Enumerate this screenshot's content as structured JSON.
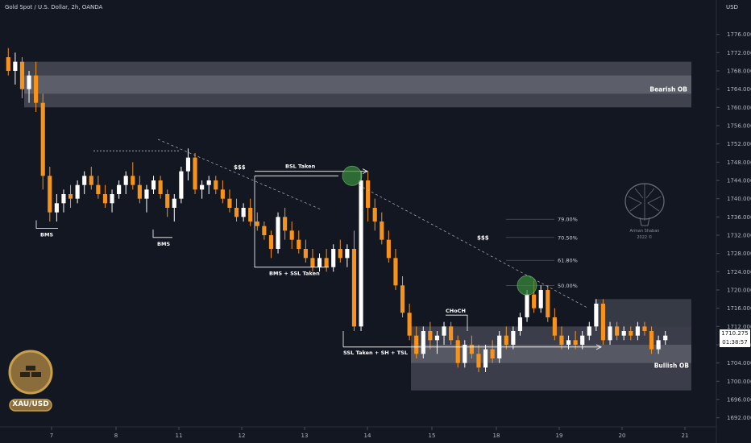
{
  "header": {
    "symbol": "Gold Spot / U.S. Dollar, 2h, OANDA",
    "currency": "USD"
  },
  "price_tag": {
    "value": "1710.275",
    "countdown": "01:38:57"
  },
  "badge": {
    "text": "XAU/USD"
  },
  "watermark": {
    "line1": "Arman Shaban",
    "line2": "2022 ©"
  },
  "colors": {
    "background": "#131722",
    "up": "#ffffff",
    "down": "#f7931a",
    "zone": "#787b86",
    "circle": "#388e3c"
  },
  "chart_data": {
    "type": "candlestick",
    "title": "Gold Spot / U.S. Dollar, 2h, OANDA",
    "ylim": [
      1690,
      1780
    ],
    "y_ticks": [
      "1692.000",
      "1696.000",
      "1700.000",
      "1704.000",
      "1708.000",
      "1712.000",
      "1716.000",
      "1720.000",
      "1724.000",
      "1728.000",
      "1732.000",
      "1736.000",
      "1740.000",
      "1744.000",
      "1748.000",
      "1752.000",
      "1756.000",
      "1760.000",
      "1764.000",
      "1768.000",
      "1772.000",
      "1776.000"
    ],
    "x_ticks": [
      "7",
      "8",
      "11",
      "12",
      "13",
      "14",
      "15",
      "18",
      "19",
      "20",
      "21"
    ],
    "candles": [
      [
        1771,
        1773,
        1767,
        1768
      ],
      [
        1768,
        1772,
        1765,
        1770
      ],
      [
        1770,
        1771,
        1762,
        1764
      ],
      [
        1764,
        1768,
        1761,
        1767
      ],
      [
        1767,
        1770,
        1759,
        1761
      ],
      [
        1761,
        1763,
        1742,
        1745
      ],
      [
        1745,
        1747,
        1735,
        1737
      ],
      [
        1737,
        1741,
        1735,
        1739
      ],
      [
        1739,
        1742,
        1737,
        1741
      ],
      [
        1741,
        1743,
        1738,
        1740
      ],
      [
        1740,
        1744,
        1739,
        1743
      ],
      [
        1743,
        1746,
        1741,
        1745
      ],
      [
        1745,
        1747,
        1742,
        1743
      ],
      [
        1743,
        1745,
        1740,
        1741
      ],
      [
        1741,
        1743,
        1738,
        1739
      ],
      [
        1739,
        1742,
        1737,
        1741
      ],
      [
        1741,
        1744,
        1740,
        1743
      ],
      [
        1743,
        1746,
        1741,
        1745
      ],
      [
        1745,
        1748,
        1742,
        1743
      ],
      [
        1743,
        1745,
        1739,
        1740
      ],
      [
        1740,
        1743,
        1737,
        1742
      ],
      [
        1742,
        1745,
        1741,
        1744
      ],
      [
        1744,
        1745,
        1740,
        1741
      ],
      [
        1741,
        1742,
        1736,
        1738
      ],
      [
        1738,
        1741,
        1735,
        1740
      ],
      [
        1740,
        1747,
        1739,
        1746
      ],
      [
        1746,
        1751,
        1744,
        1749
      ],
      [
        1749,
        1750,
        1741,
        1742
      ],
      [
        1742,
        1744,
        1740,
        1743
      ],
      [
        1743,
        1745,
        1741,
        1744
      ],
      [
        1744,
        1745,
        1741,
        1742
      ],
      [
        1742,
        1744,
        1739,
        1740
      ],
      [
        1740,
        1742,
        1737,
        1738
      ],
      [
        1738,
        1740,
        1735,
        1736
      ],
      [
        1736,
        1739,
        1735,
        1738
      ],
      [
        1738,
        1740,
        1734,
        1735
      ],
      [
        1735,
        1737,
        1733,
        1734
      ],
      [
        1734,
        1735,
        1731,
        1732
      ],
      [
        1732,
        1733,
        1727,
        1729
      ],
      [
        1729,
        1737,
        1728,
        1736
      ],
      [
        1736,
        1738,
        1731,
        1733
      ],
      [
        1733,
        1735,
        1729,
        1731
      ],
      [
        1731,
        1733,
        1728,
        1729
      ],
      [
        1729,
        1731,
        1726,
        1727
      ],
      [
        1727,
        1729,
        1724,
        1725
      ],
      [
        1725,
        1728,
        1724,
        1727
      ],
      [
        1727,
        1729,
        1724,
        1725
      ],
      [
        1725,
        1730,
        1724,
        1729
      ],
      [
        1729,
        1731,
        1726,
        1727
      ],
      [
        1727,
        1730,
        1725,
        1729
      ],
      [
        1729,
        1733,
        1711,
        1712
      ],
      [
        1712,
        1746,
        1711,
        1744
      ],
      [
        1744,
        1746,
        1735,
        1738
      ],
      [
        1738,
        1740,
        1733,
        1735
      ],
      [
        1735,
        1737,
        1730,
        1731
      ],
      [
        1731,
        1733,
        1726,
        1727
      ],
      [
        1727,
        1729,
        1720,
        1721
      ],
      [
        1721,
        1723,
        1714,
        1715
      ],
      [
        1715,
        1717,
        1709,
        1710
      ],
      [
        1710,
        1712,
        1705,
        1706
      ],
      [
        1706,
        1712,
        1705,
        1711
      ],
      [
        1711,
        1713,
        1707,
        1709
      ],
      [
        1709,
        1711,
        1706,
        1710
      ],
      [
        1710,
        1713,
        1708,
        1712
      ],
      [
        1712,
        1713,
        1708,
        1709
      ],
      [
        1709,
        1710,
        1703,
        1704
      ],
      [
        1704,
        1709,
        1703,
        1708
      ],
      [
        1708,
        1710,
        1705,
        1706
      ],
      [
        1706,
        1708,
        1702,
        1703
      ],
      [
        1703,
        1708,
        1702,
        1707
      ],
      [
        1707,
        1709,
        1704,
        1705
      ],
      [
        1705,
        1711,
        1704,
        1710
      ],
      [
        1710,
        1712,
        1707,
        1708
      ],
      [
        1708,
        1712,
        1707,
        1711
      ],
      [
        1711,
        1715,
        1710,
        1714
      ],
      [
        1714,
        1720,
        1713,
        1719
      ],
      [
        1719,
        1722,
        1715,
        1716
      ],
      [
        1716,
        1721,
        1715,
        1720
      ],
      [
        1720,
        1721,
        1713,
        1714
      ],
      [
        1714,
        1716,
        1709,
        1710
      ],
      [
        1710,
        1712,
        1707,
        1708
      ],
      [
        1708,
        1710,
        1707,
        1709
      ],
      [
        1709,
        1711,
        1707,
        1708
      ],
      [
        1708,
        1711,
        1707,
        1710
      ],
      [
        1710,
        1713,
        1709,
        1712
      ],
      [
        1712,
        1718,
        1711,
        1717
      ],
      [
        1717,
        1718,
        1708,
        1709
      ],
      [
        1709,
        1713,
        1708,
        1712
      ],
      [
        1712,
        1713,
        1709,
        1710
      ],
      [
        1710,
        1712,
        1709,
        1711
      ],
      [
        1711,
        1712,
        1709,
        1710
      ],
      [
        1710,
        1713,
        1709,
        1712
      ],
      [
        1712,
        1713,
        1710,
        1711
      ],
      [
        1711,
        1712,
        1706,
        1707
      ],
      [
        1707,
        1710,
        1706,
        1709
      ],
      [
        1709,
        1711,
        1708,
        1710
      ]
    ],
    "zones": [
      {
        "label": "Bearish OB",
        "top": 1770,
        "bottom": 1760
      },
      {
        "label": "Bullish OB",
        "top": 1712,
        "bottom": 1698
      },
      {
        "label": "",
        "top": 1718,
        "bottom": 1704
      }
    ],
    "fib_levels": [
      "79.00%",
      "70.50%",
      "61.80%",
      "50.00%"
    ],
    "annotations": {
      "bms1": "BMS",
      "bms2": "BMS",
      "bms_ssl": "BMS + SSL Taken",
      "bsl": "BSL Taken",
      "ssl_sh_tsl": "SSL Taken + SH + TSL",
      "choch": "CHoCH",
      "liq1": "$$$",
      "liq2": "$$$"
    }
  }
}
